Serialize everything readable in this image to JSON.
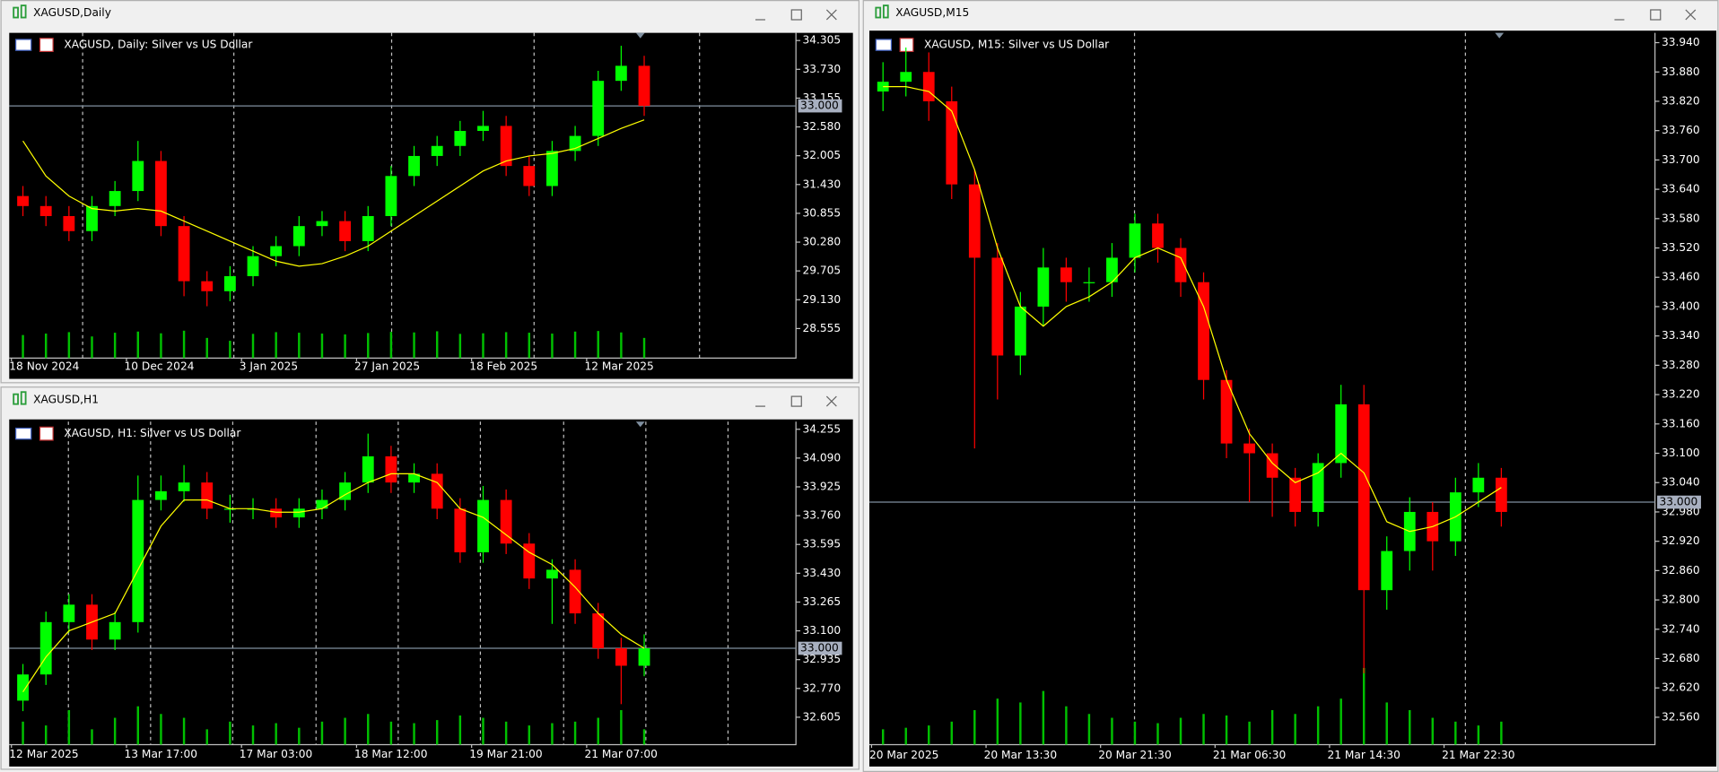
{
  "chart_data": [
    {
      "type": "candlestick",
      "window_title": "XAGUSD,Daily",
      "title": "XAGUSD, Daily:  Silver vs US Dollar",
      "categories": [
        "18 Nov 2024",
        null,
        null,
        null,
        null,
        "10 Dec 2024",
        null,
        null,
        null,
        null,
        "3 Jan 2025",
        null,
        null,
        null,
        null,
        "27 Jan 2025",
        null,
        null,
        null,
        null,
        "18 Feb 2025",
        null,
        null,
        null,
        null,
        "12 Mar 2025",
        null,
        null
      ],
      "open": [
        31.2,
        31.0,
        30.8,
        30.5,
        31.0,
        31.3,
        31.9,
        30.6,
        29.5,
        29.3,
        29.6,
        30.0,
        30.2,
        30.6,
        30.7,
        30.3,
        30.8,
        31.6,
        32.0,
        32.2,
        32.5,
        32.6,
        31.8,
        31.4,
        32.1,
        32.4,
        33.5,
        33.8
      ],
      "high": [
        31.4,
        31.2,
        31.0,
        31.2,
        31.5,
        32.3,
        32.1,
        30.8,
        29.7,
        29.8,
        30.2,
        30.4,
        30.8,
        30.9,
        30.9,
        31.0,
        31.8,
        32.2,
        32.4,
        32.7,
        32.9,
        32.8,
        32.0,
        32.3,
        32.6,
        33.7,
        34.2,
        34.0
      ],
      "low": [
        30.8,
        30.6,
        30.3,
        30.3,
        30.8,
        31.1,
        30.4,
        29.2,
        29.0,
        29.1,
        29.4,
        29.8,
        30.0,
        30.4,
        30.1,
        30.1,
        30.6,
        31.4,
        31.8,
        32.0,
        32.3,
        31.6,
        31.2,
        31.2,
        31.9,
        32.2,
        33.3,
        32.8
      ],
      "close": [
        31.0,
        30.8,
        30.5,
        31.0,
        31.3,
        31.9,
        30.6,
        29.5,
        29.3,
        29.6,
        30.0,
        30.2,
        30.6,
        30.7,
        30.3,
        30.8,
        31.6,
        32.0,
        32.2,
        32.5,
        32.6,
        31.8,
        31.4,
        32.1,
        32.4,
        33.5,
        33.8,
        33.0
      ],
      "ma": [
        32.3,
        31.6,
        31.2,
        30.95,
        30.9,
        30.95,
        30.9,
        30.7,
        30.5,
        30.3,
        30.1,
        29.9,
        29.8,
        29.85,
        30.0,
        30.2,
        30.5,
        30.8,
        31.1,
        31.4,
        31.7,
        31.9,
        32.0,
        32.05,
        32.15,
        32.35,
        32.55,
        32.72
      ],
      "volume": [
        80,
        85,
        90,
        75,
        88,
        92,
        86,
        95,
        70,
        60,
        84,
        90,
        88,
        85,
        82,
        87,
        91,
        89,
        93,
        84,
        86,
        90,
        88,
        85,
        92,
        94,
        89,
        70
      ],
      "up_color": "#00ff00",
      "down_color": "#ff0000",
      "ma_color": "#ffff00",
      "volume_color": "#00c000",
      "price_line": {
        "value": 33.0,
        "label": "33.000"
      },
      "ylim": [
        27.965,
        34.458
      ],
      "yticks": [
        {
          "value": 34.305,
          "label": "34.305"
        },
        {
          "value": 33.73,
          "label": "33.730"
        },
        {
          "value": 33.155,
          "label": "33.155"
        },
        {
          "value": 32.58,
          "label": "32.580"
        },
        {
          "value": 32.005,
          "label": "32.005"
        },
        {
          "value": 31.43,
          "label": "31.430"
        },
        {
          "value": 30.855,
          "label": "30.855"
        },
        {
          "value": 30.28,
          "label": "30.280"
        },
        {
          "value": 29.705,
          "label": "29.705"
        },
        {
          "value": 29.13,
          "label": "29.130"
        },
        {
          "value": 28.555,
          "label": "28.555"
        }
      ]
    },
    {
      "type": "candlestick",
      "window_title": "XAGUSD,H1",
      "title": "XAGUSD, H1:  Silver vs US Dollar",
      "categories": [
        "12 Mar 2025",
        null,
        null,
        null,
        null,
        "13 Mar 17:00",
        null,
        null,
        null,
        null,
        "17 Mar 03:00",
        null,
        null,
        null,
        null,
        "18 Mar 12:00",
        null,
        null,
        null,
        null,
        "19 Mar 21:00",
        null,
        null,
        null,
        null,
        "21 Mar 07:00",
        null,
        null
      ],
      "open": [
        32.7,
        32.85,
        33.15,
        33.25,
        33.05,
        33.15,
        33.85,
        33.9,
        33.95,
        33.8,
        33.8,
        33.8,
        33.75,
        33.8,
        33.85,
        33.95,
        34.1,
        33.95,
        34.0,
        33.8,
        33.55,
        33.85,
        33.6,
        33.4,
        33.45,
        33.2,
        33.0,
        32.9
      ],
      "high": [
        32.91,
        33.21,
        33.31,
        33.31,
        33.21,
        33.99,
        33.99,
        34.05,
        34.01,
        33.88,
        33.86,
        33.86,
        33.86,
        33.91,
        34.01,
        34.23,
        34.16,
        34.06,
        34.06,
        33.86,
        33.93,
        33.91,
        33.66,
        33.51,
        33.51,
        33.26,
        33.06,
        33.08
      ],
      "low": [
        32.64,
        32.79,
        33.09,
        32.99,
        32.99,
        33.09,
        33.79,
        33.84,
        33.74,
        33.72,
        33.74,
        33.69,
        33.69,
        33.74,
        33.79,
        33.89,
        33.89,
        33.89,
        33.74,
        33.49,
        33.49,
        33.54,
        33.34,
        33.14,
        33.14,
        32.94,
        32.68,
        32.84
      ],
      "close": [
        32.85,
        33.15,
        33.25,
        33.05,
        33.15,
        33.85,
        33.9,
        33.95,
        33.8,
        33.8,
        33.8,
        33.75,
        33.8,
        33.85,
        33.95,
        34.1,
        33.95,
        34.0,
        33.8,
        33.55,
        33.85,
        33.6,
        33.4,
        33.45,
        33.2,
        33.0,
        32.9,
        33.0
      ],
      "ma": [
        32.75,
        32.95,
        33.1,
        33.15,
        33.2,
        33.45,
        33.7,
        33.85,
        33.85,
        33.8,
        33.8,
        33.78,
        33.78,
        33.8,
        33.88,
        33.95,
        34.0,
        34.0,
        33.95,
        33.8,
        33.75,
        33.65,
        33.55,
        33.48,
        33.35,
        33.2,
        33.08,
        33.0
      ],
      "volume": [
        30,
        25,
        45,
        20,
        35,
        50,
        40,
        35,
        20,
        30,
        25,
        28,
        22,
        30,
        35,
        40,
        30,
        28,
        32,
        38,
        35,
        30,
        25,
        28,
        30,
        35,
        45,
        20
      ],
      "up_color": "#00ff00",
      "down_color": "#ff0000",
      "ma_color": "#ffff00",
      "volume_color": "#00c000",
      "price_line": {
        "value": 33.0,
        "label": "33.000"
      },
      "ylim": [
        32.448,
        34.299
      ],
      "yticks": [
        {
          "value": 34.255,
          "label": "34.255"
        },
        {
          "value": 34.09,
          "label": "34.090"
        },
        {
          "value": 33.925,
          "label": "33.925"
        },
        {
          "value": 33.76,
          "label": "33.760"
        },
        {
          "value": 33.595,
          "label": "33.595"
        },
        {
          "value": 33.43,
          "label": "33.430"
        },
        {
          "value": 33.265,
          "label": "33.265"
        },
        {
          "value": 33.1,
          "label": "33.100"
        },
        {
          "value": 32.935,
          "label": "32.935"
        },
        {
          "value": 32.77,
          "label": "32.770"
        },
        {
          "value": 32.605,
          "label": "32.605"
        }
      ]
    },
    {
      "type": "candlestick",
      "window_title": "XAGUSD,M15",
      "title": "XAGUSD, M15:  Silver vs US Dollar",
      "categories": [
        "20 Mar 2025",
        null,
        null,
        null,
        null,
        "20 Mar 13:30",
        null,
        null,
        null,
        null,
        "20 Mar 21:30",
        null,
        null,
        null,
        null,
        "21 Mar 06:30",
        null,
        null,
        null,
        null,
        "21 Mar 14:30",
        null,
        null,
        null,
        null,
        "21 Mar 22:30",
        null,
        null
      ],
      "open": [
        33.84,
        33.86,
        33.88,
        33.82,
        33.65,
        33.5,
        33.3,
        33.4,
        33.48,
        33.45,
        33.45,
        33.5,
        33.57,
        33.52,
        33.45,
        33.25,
        33.12,
        33.1,
        33.05,
        32.98,
        33.08,
        33.2,
        32.82,
        32.9,
        32.98,
        32.92,
        33.02,
        33.05
      ],
      "high": [
        33.9,
        33.93,
        33.92,
        33.85,
        33.68,
        33.53,
        33.43,
        33.52,
        33.5,
        33.48,
        33.53,
        33.59,
        33.59,
        33.54,
        33.47,
        33.27,
        33.15,
        33.12,
        33.07,
        33.1,
        33.24,
        33.24,
        32.93,
        33.01,
        33.0,
        33.05,
        33.08,
        33.07
      ],
      "low": [
        33.8,
        33.83,
        33.78,
        33.62,
        33.11,
        33.21,
        33.26,
        33.36,
        33.41,
        33.41,
        33.42,
        33.47,
        33.49,
        33.42,
        33.21,
        33.09,
        33.0,
        32.97,
        32.95,
        32.95,
        33.05,
        32.65,
        32.78,
        32.86,
        32.86,
        32.89,
        32.99,
        32.95
      ],
      "close": [
        33.86,
        33.88,
        33.82,
        33.65,
        33.5,
        33.3,
        33.4,
        33.48,
        33.45,
        33.45,
        33.5,
        33.57,
        33.52,
        33.45,
        33.25,
        33.12,
        33.1,
        33.05,
        32.98,
        33.08,
        33.2,
        32.82,
        32.9,
        32.98,
        32.92,
        33.02,
        33.05,
        32.98
      ],
      "ma": [
        33.85,
        33.85,
        33.84,
        33.8,
        33.68,
        33.52,
        33.4,
        33.36,
        33.4,
        33.42,
        33.45,
        33.5,
        33.52,
        33.5,
        33.4,
        33.25,
        33.14,
        33.08,
        33.04,
        33.06,
        33.1,
        33.06,
        32.96,
        32.94,
        32.95,
        32.97,
        33.0,
        33.03
      ],
      "volume": [
        20,
        22,
        25,
        30,
        45,
        60,
        55,
        70,
        50,
        40,
        35,
        30,
        28,
        35,
        40,
        38,
        30,
        45,
        40,
        50,
        60,
        100,
        55,
        45,
        35,
        30,
        25,
        30
      ],
      "up_color": "#00ff00",
      "down_color": "#ff0000",
      "ma_color": "#ffff00",
      "volume_color": "#00c000",
      "price_line": {
        "value": 33.0,
        "label": "33.000"
      },
      "ylim": [
        32.504,
        33.96
      ],
      "yticks": [
        {
          "value": 33.94,
          "label": "33.940"
        },
        {
          "value": 33.88,
          "label": "33.880"
        },
        {
          "value": 33.82,
          "label": "33.820"
        },
        {
          "value": 33.76,
          "label": "33.760"
        },
        {
          "value": 33.7,
          "label": "33.700"
        },
        {
          "value": 33.64,
          "label": "33.640"
        },
        {
          "value": 33.58,
          "label": "33.580"
        },
        {
          "value": 33.52,
          "label": "33.520"
        },
        {
          "value": 33.46,
          "label": "33.460"
        },
        {
          "value": 33.4,
          "label": "33.400"
        },
        {
          "value": 33.34,
          "label": "33.340"
        },
        {
          "value": 33.28,
          "label": "33.280"
        },
        {
          "value": 33.22,
          "label": "33.220"
        },
        {
          "value": 33.16,
          "label": "33.160"
        },
        {
          "value": 33.1,
          "label": "33.100"
        },
        {
          "value": 33.04,
          "label": "33.040"
        },
        {
          "value": 32.98,
          "label": "32.980"
        },
        {
          "value": 32.92,
          "label": "32.920"
        },
        {
          "value": 32.86,
          "label": "32.860"
        },
        {
          "value": 32.8,
          "label": "32.800"
        },
        {
          "value": 32.74,
          "label": "32.740"
        },
        {
          "value": 32.68,
          "label": "32.680"
        },
        {
          "value": 32.62,
          "label": "32.620"
        },
        {
          "value": 32.56,
          "label": "32.560"
        }
      ]
    }
  ]
}
